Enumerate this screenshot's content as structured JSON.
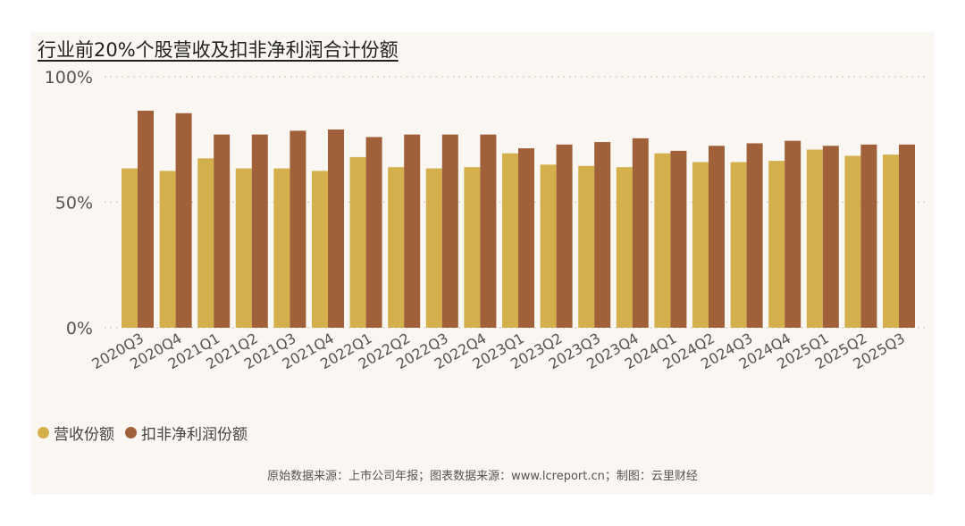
{
  "title": "行业前20%个股营收及扣非净利润合计份额",
  "source": "原始数据来源：上市公司年报；图表数据来源：www.lcreport.cn；制图：云里财经",
  "colors": {
    "revenue": "#d4b04c",
    "profit": "#a0603a",
    "grid": "#c8bfb4",
    "panel": "#faf6f1"
  },
  "chart_data": {
    "type": "bar",
    "title": "行业前20%个股营收及扣非净利润合计份额",
    "categories": [
      "2020Q3",
      "2020Q4",
      "2021Q1",
      "2021Q2",
      "2021Q3",
      "2021Q4",
      "2022Q1",
      "2022Q2",
      "2022Q3",
      "2022Q4",
      "2023Q1",
      "2023Q2",
      "2023Q3",
      "2023Q4",
      "2024Q1",
      "2024Q2",
      "2024Q3",
      "2024Q4",
      "2025Q1",
      "2025Q2",
      "2025Q3"
    ],
    "series": [
      {
        "name": "营收份额",
        "values": [
          63.5,
          62.5,
          67.5,
          63.5,
          63.5,
          62.5,
          68,
          64,
          63.5,
          64,
          69.5,
          65,
          64.5,
          64,
          69.5,
          66,
          66,
          66.5,
          71,
          68.5,
          69
        ]
      },
      {
        "name": "扣非净利润份额",
        "values": [
          86.5,
          85.5,
          77,
          77,
          78.5,
          79,
          76,
          77,
          77,
          77,
          71.5,
          73,
          74,
          75.5,
          70.5,
          72.5,
          73.5,
          74.5,
          72.5,
          73,
          73
        ]
      }
    ],
    "y_ticks": [
      "100%",
      "50%",
      "0%"
    ],
    "ylim": [
      0,
      100
    ],
    "grid": true,
    "legend": "bottom-left"
  }
}
